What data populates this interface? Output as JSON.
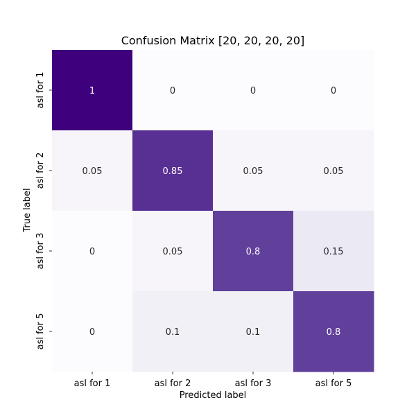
{
  "chart_data": {
    "type": "heatmap",
    "title": "Confusion Matrix [20, 20, 20, 20]",
    "xlabel": "Predicted label",
    "ylabel": "True label",
    "x_categories": [
      "asl for 1",
      "asl for 2",
      "asl for 3",
      "asl for 5"
    ],
    "y_categories": [
      "asl for 1",
      "asl for 2",
      "asl for 3",
      "asl for 5"
    ],
    "values": [
      [
        1,
        0,
        0,
        0
      ],
      [
        0.05,
        0.85,
        0.05,
        0.05
      ],
      [
        0,
        0.05,
        0.8,
        0.15
      ],
      [
        0,
        0.1,
        0.1,
        0.8
      ]
    ],
    "value_labels": [
      [
        "1",
        "0",
        "0",
        "0"
      ],
      [
        "0.05",
        "0.85",
        "0.05",
        "0.05"
      ],
      [
        "0",
        "0.05",
        "0.8",
        "0.15"
      ],
      [
        "0",
        "0.1",
        "0.1",
        "0.8"
      ]
    ],
    "colormap": "Purples",
    "value_range": [
      0,
      1
    ],
    "colorbar": false,
    "grid": false
  }
}
